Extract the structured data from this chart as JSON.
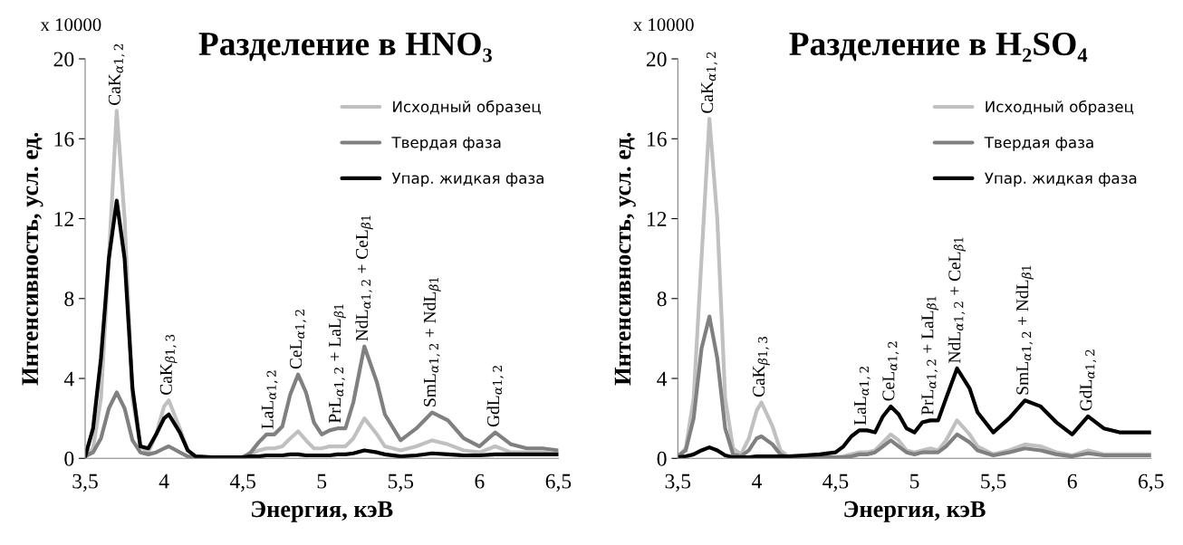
{
  "chart_data": [
    {
      "type": "line",
      "title": "Разделение в HNO₃",
      "xlabel": "Энергия, кэВ",
      "ylabel": "Интенсивность, усл. ед.",
      "x": [
        3.5,
        3.55,
        3.6,
        3.65,
        3.7,
        3.75,
        3.8,
        3.85,
        3.9,
        3.95,
        4.0,
        4.03,
        4.1,
        4.15,
        4.2,
        4.3,
        4.4,
        4.5,
        4.55,
        4.6,
        4.65,
        4.7,
        4.75,
        4.8,
        4.85,
        4.9,
        4.95,
        5.0,
        5.05,
        5.1,
        5.15,
        5.2,
        5.27,
        5.35,
        5.4,
        5.5,
        5.6,
        5.7,
        5.8,
        5.9,
        6.0,
        6.1,
        6.2,
        6.3,
        6.4,
        6.5
      ],
      "series": [
        {
          "name": "Исходный образец",
          "color": "#c0c0c0",
          "values": [
            0.1,
            0.5,
            3,
            10,
            17.4,
            12,
            3,
            0.6,
            0.3,
            1.2,
            2.6,
            2.9,
            1.5,
            0.4,
            0.1,
            0.05,
            null,
            0.1,
            0.2,
            0.4,
            0.5,
            0.5,
            0.6,
            1.0,
            1.35,
            0.9,
            0.5,
            0.5,
            0.6,
            0.6,
            0.6,
            1.0,
            2.0,
            1.2,
            0.6,
            0.4,
            0.6,
            0.9,
            0.7,
            0.4,
            0.3,
            0.6,
            0.3,
            0.3,
            0.3,
            0.2
          ]
        },
        {
          "name": "Твердая фаза",
          "color": "#808080",
          "values": [
            0.1,
            0.3,
            1,
            2.5,
            3.3,
            2.5,
            0.9,
            0.3,
            0.2,
            0.3,
            0.5,
            0.6,
            0.3,
            0.1,
            0.05,
            0.05,
            0.05,
            0.05,
            0.3,
            0.8,
            1.2,
            1.2,
            1.6,
            3.2,
            4.2,
            3.3,
            1.8,
            1.2,
            1.4,
            1.5,
            1.5,
            2.8,
            5.6,
            3.8,
            2.2,
            0.9,
            1.5,
            2.3,
            1.9,
            1.0,
            0.6,
            1.3,
            0.7,
            0.5,
            0.5,
            0.4
          ]
        },
        {
          "name": "Упар. жидкая фаза",
          "color": "#000000",
          "values": [
            0.1,
            1.5,
            5,
            10,
            12.9,
            10,
            3.5,
            0.6,
            0.5,
            1.2,
            2.0,
            2.2,
            1.3,
            0.4,
            0.1,
            0.05,
            0.05,
            0.05,
            0.1,
            0.1,
            0.15,
            0.15,
            0.15,
            0.2,
            0.2,
            0.15,
            0.15,
            0.15,
            0.15,
            0.2,
            0.2,
            0.25,
            0.4,
            0.3,
            0.2,
            0.1,
            0.15,
            0.25,
            0.2,
            0.15,
            0.15,
            0.2,
            0.2,
            0.2,
            0.2,
            0.2
          ]
        }
      ],
      "xlim": [
        3.5,
        6.5
      ],
      "xticks": [
        {
          "value": 3.5,
          "label": "3,5"
        },
        4,
        {
          "value": 4.5,
          "label": "4,5"
        },
        5,
        {
          "value": 5.5,
          "label": "5,5"
        },
        6,
        {
          "value": 6.5,
          "label": "6,5"
        }
      ],
      "ylim": [
        0,
        20
      ],
      "yticks": [
        0,
        4,
        8,
        12,
        16,
        20
      ],
      "grid": false,
      "legend": "top right",
      "marker": "none",
      "line_style": "solid",
      "annotations": [
        "x 10000",
        {
          "text": "CaK$_{α1,2}$",
          "x": 3.7,
          "y": 17.4
        },
        {
          "text": "CaK$_{β1,3}$",
          "x": 4.03,
          "y": 2.9
        },
        {
          "text": "LaL$_{α1,2}$",
          "x": 4.67,
          "y": 1.2
        },
        {
          "text": "CeL$_{α1,2}$",
          "x": 4.85,
          "y": 4.2
        },
        {
          "text": "PrL$_{α1,2}$ + LaL$_{β1}$",
          "x": 5.1,
          "y": 1.5
        },
        {
          "text": "NdL$_{α1,2}$ + CeL$_{β1}$",
          "x": 5.27,
          "y": 5.6
        },
        {
          "text": "SmL$_{α1,2}$ + NdL$_{β1}$",
          "x": 5.7,
          "y": 2.3
        },
        {
          "text": "GdL$_{α1,2}$",
          "x": 6.1,
          "y": 1.3
        }
      ]
    },
    {
      "type": "line",
      "title": "Разделение в H₂SO₄",
      "xlabel": "Энергия, кэВ",
      "ylabel": "Интенсивность, усл. ед.",
      "x": [
        3.5,
        3.55,
        3.6,
        3.65,
        3.7,
        3.75,
        3.8,
        3.85,
        3.9,
        3.95,
        4.0,
        4.03,
        4.1,
        4.15,
        4.2,
        4.3,
        4.4,
        4.5,
        4.55,
        4.6,
        4.65,
        4.7,
        4.75,
        4.8,
        4.85,
        4.9,
        4.95,
        5.0,
        5.05,
        5.1,
        5.15,
        5.2,
        5.27,
        5.35,
        5.4,
        5.5,
        5.6,
        5.7,
        5.8,
        5.9,
        6.0,
        6.1,
        6.2,
        6.3,
        6.4,
        6.5
      ],
      "series": [
        {
          "name": "Исходный образец",
          "color": "#c0c0c0",
          "values": [
            0.1,
            0.5,
            3,
            10,
            17,
            12,
            3,
            0.5,
            0.2,
            1.0,
            2.4,
            2.8,
            1.6,
            0.4,
            0.1,
            0.05,
            null,
            0.05,
            0.1,
            0.2,
            0.3,
            0.3,
            0.4,
            0.8,
            1.2,
            0.9,
            0.4,
            0.3,
            0.4,
            0.5,
            0.4,
            0.9,
            1.9,
            1.2,
            0.6,
            0.2,
            0.4,
            0.7,
            0.6,
            0.3,
            0.15,
            0.4,
            0.2,
            0.2,
            0.2,
            0.2
          ]
        },
        {
          "name": "Твердая фаза",
          "color": "#808080",
          "values": [
            0.1,
            0.4,
            2,
            5.5,
            7.1,
            5,
            1.5,
            0.2,
            0.1,
            0.4,
            1.0,
            1.1,
            0.7,
            0.2,
            0.05,
            0.05,
            0.05,
            0.05,
            0.05,
            0.1,
            0.2,
            0.2,
            0.3,
            0.6,
            0.9,
            0.6,
            0.3,
            0.2,
            0.3,
            0.3,
            0.3,
            0.6,
            1.2,
            0.8,
            0.4,
            0.15,
            0.3,
            0.5,
            0.4,
            0.2,
            0.1,
            0.25,
            0.15,
            0.15,
            0.15,
            0.15
          ]
        },
        {
          "name": "Упар. жидкая фаза",
          "color": "#000000",
          "values": [
            0.05,
            0.1,
            0.2,
            0.4,
            0.55,
            0.4,
            0.15,
            0.05,
            0.05,
            0.05,
            0.1,
            0.1,
            0.1,
            0.1,
            0.1,
            0.15,
            0.2,
            0.3,
            0.6,
            1.1,
            1.4,
            1.4,
            1.3,
            2.1,
            2.6,
            2.2,
            1.5,
            1.3,
            1.8,
            1.9,
            1.9,
            3.0,
            4.5,
            3.5,
            2.3,
            1.3,
            2.0,
            2.9,
            2.6,
            1.8,
            1.2,
            2.1,
            1.5,
            1.3,
            1.3,
            1.3
          ]
        }
      ],
      "xlim": [
        3.5,
        6.5
      ],
      "xticks": [
        {
          "value": 3.5,
          "label": "3,5"
        },
        4,
        {
          "value": 4.5,
          "label": "4,5"
        },
        5,
        {
          "value": 5.5,
          "label": "5,5"
        },
        6,
        {
          "value": 6.5,
          "label": "6,5"
        }
      ],
      "ylim": [
        0,
        20
      ],
      "yticks": [
        0,
        4,
        8,
        12,
        16,
        20
      ],
      "grid": false,
      "legend": "top right",
      "marker": "none",
      "line_style": "solid",
      "annotations": [
        "x 10000",
        {
          "text": "CaK$_{α1,2}$",
          "x": 3.7,
          "y": 17
        },
        {
          "text": "CaK$_{β1,3}$",
          "x": 4.03,
          "y": 2.8
        },
        {
          "text": "LaL$_{α1,2}$",
          "x": 4.67,
          "y": 1.4
        },
        {
          "text": "CeL$_{α1,2}$",
          "x": 4.85,
          "y": 2.6
        },
        {
          "text": "PrL$_{α1,2}$ + LaL$_{β1}$",
          "x": 5.1,
          "y": 1.9
        },
        {
          "text": "NdL$_{α1,2}$ + CeL$_{β1}$",
          "x": 5.27,
          "y": 4.5
        },
        {
          "text": "SmL$_{α1,2}$ + NdL$_{β1}$",
          "x": 5.7,
          "y": 2.9
        },
        {
          "text": "GdL$_{α1,2}$",
          "x": 6.1,
          "y": 2.1
        }
      ]
    }
  ]
}
